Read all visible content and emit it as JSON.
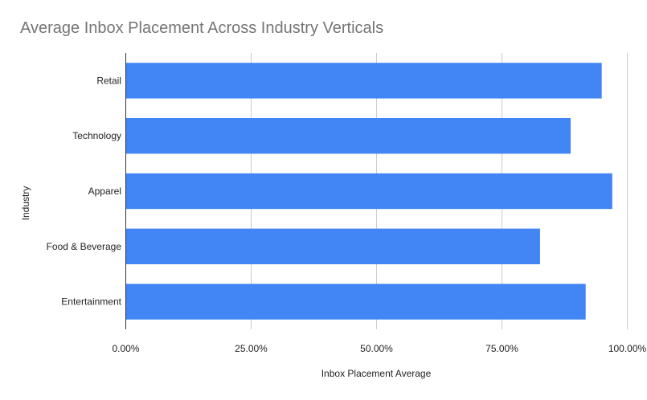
{
  "chart_data": {
    "type": "bar",
    "orientation": "horizontal",
    "title": "Average Inbox Placement Across Industry Verticals",
    "xlabel": "Inbox Placement Average",
    "ylabel": "Industry",
    "categories": [
      "Retail",
      "Technology",
      "Apparel",
      "Food & Beverage",
      "Entertainment"
    ],
    "series": [
      {
        "values": [
          94.9,
          88.7,
          97.0,
          82.6,
          91.7
        ]
      }
    ],
    "xlim": [
      0,
      100
    ],
    "xticks": [
      "0.00%",
      "25.00%",
      "50.00%",
      "75.00%",
      "100.00%"
    ],
    "grid": true,
    "legend": "none",
    "colors": {
      "bar": "#4285f4",
      "grid": "#cccccc",
      "axis": "#333333",
      "title": "#757575",
      "text": "#222222"
    }
  }
}
